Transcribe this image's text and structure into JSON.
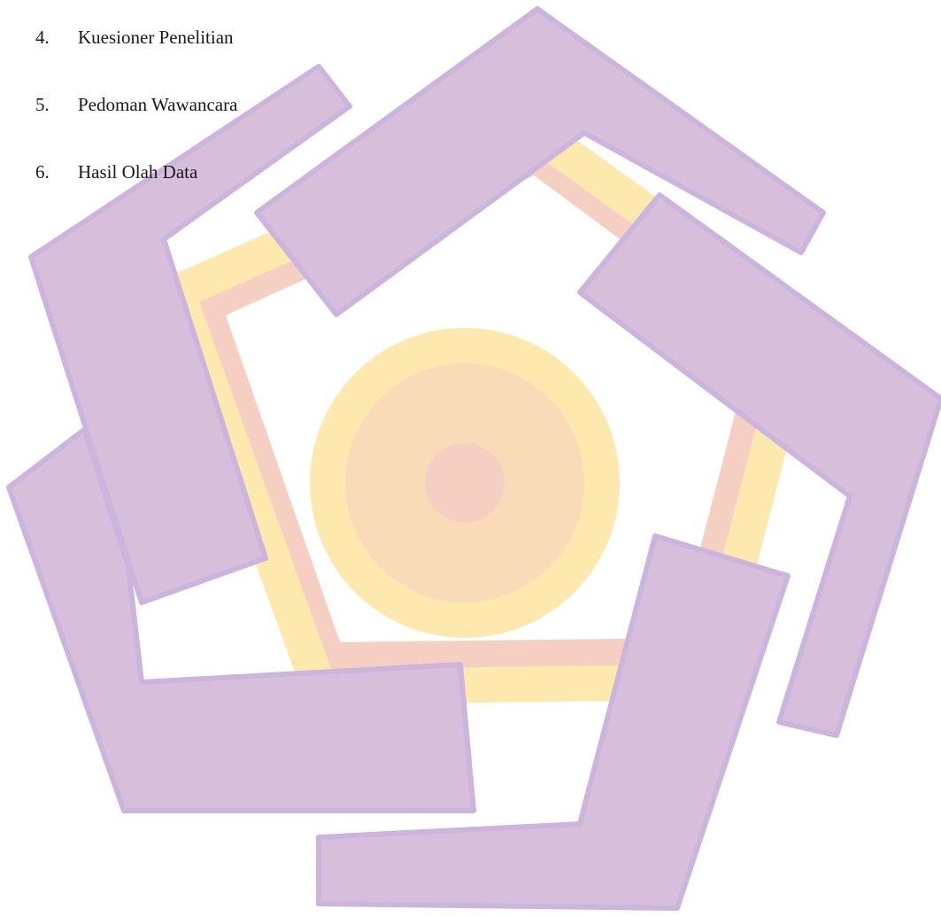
{
  "list": {
    "items": [
      {
        "number": "4.",
        "text": "Kuesioner Penelitian"
      },
      {
        "number": "5.",
        "text": "Pedoman Wawancara"
      },
      {
        "number": "6.",
        "text": "Hasil Olah Data"
      }
    ]
  },
  "watermark": {
    "icon": "university-logo-icon",
    "colors": {
      "purple": "#d7bfdc",
      "purple_shadow": "#ccb5dc",
      "yellow": "#fde8ae",
      "peach": "#f9dbb8",
      "pink": "#f6cfc3"
    }
  }
}
